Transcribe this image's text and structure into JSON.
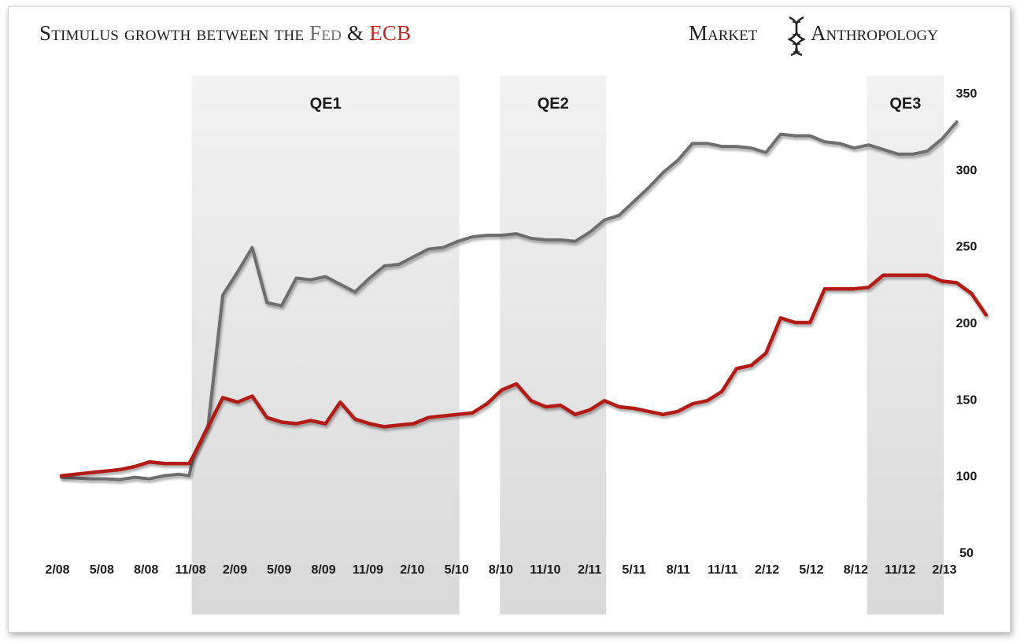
{
  "header": {
    "title_part1": "Stimulus growth between the ",
    "title_fed": "Fed",
    "title_amp": " & ",
    "title_ecb": "ECB",
    "brand_word1": "Market",
    "brand_word2": "Anthropology",
    "brand_icon": "dna-helix-icon"
  },
  "colors": {
    "fed": "#6e6e6e",
    "ecb": "#b31b17",
    "qe_band": "#e4e4e4"
  },
  "chart_data": {
    "type": "line",
    "title": "Stimulus growth between the Fed & ECB",
    "xlabel": "",
    "ylabel": "",
    "ylim": [
      50,
      350
    ],
    "yticks": [
      50,
      100,
      150,
      200,
      250,
      300,
      350
    ],
    "x_tick_labels": [
      "2/08",
      "5/08",
      "8/08",
      "11/08",
      "2/09",
      "5/09",
      "8/09",
      "11/09",
      "2/10",
      "5/10",
      "8/10",
      "11/10",
      "2/11",
      "5/11",
      "8/11",
      "11/11",
      "2/12",
      "5/12",
      "8/12",
      "11/12",
      "2/13"
    ],
    "x_axis_note": "monthly observations, index 0 = Feb 2008, index 60 = Feb 2013",
    "qe_periods": [
      {
        "label": "QE1",
        "start": 9,
        "end": 27
      },
      {
        "label": "QE2",
        "start": 30,
        "end": 37
      },
      {
        "label": "QE3",
        "start": 55,
        "end": 60
      }
    ],
    "series": [
      {
        "name": "Fed",
        "values": [
          [
            0,
            99
          ],
          [
            1,
            98.5
          ],
          [
            2,
            98
          ],
          [
            3,
            98
          ],
          [
            4,
            97.5
          ],
          [
            5,
            99
          ],
          [
            6,
            98
          ],
          [
            7,
            100
          ],
          [
            8,
            101
          ],
          [
            8.7,
            100
          ],
          [
            9,
            113
          ],
          [
            10,
            133
          ],
          [
            11,
            218
          ],
          [
            12,
            233
          ],
          [
            13,
            249
          ],
          [
            14,
            213
          ],
          [
            15,
            211
          ],
          [
            16,
            229
          ],
          [
            17,
            228
          ],
          [
            18,
            230
          ],
          [
            19,
            225
          ],
          [
            20,
            220
          ],
          [
            21,
            229
          ],
          [
            22,
            237
          ],
          [
            23,
            238
          ],
          [
            24,
            243
          ],
          [
            25,
            248
          ],
          [
            26,
            249
          ],
          [
            27,
            253
          ],
          [
            28,
            256
          ],
          [
            29,
            257
          ],
          [
            30,
            257
          ],
          [
            31,
            258
          ],
          [
            32,
            255
          ],
          [
            33,
            254
          ],
          [
            34,
            254
          ],
          [
            35,
            253
          ],
          [
            36,
            259
          ],
          [
            37,
            267
          ],
          [
            38,
            270
          ],
          [
            39,
            279
          ],
          [
            40,
            288
          ],
          [
            41,
            298
          ],
          [
            42,
            306
          ],
          [
            43,
            317
          ],
          [
            44,
            317
          ],
          [
            45,
            315
          ],
          [
            46,
            315
          ],
          [
            47,
            314
          ],
          [
            48,
            311
          ],
          [
            49,
            323
          ],
          [
            50,
            322
          ],
          [
            51,
            322
          ],
          [
            52,
            318
          ],
          [
            53,
            317
          ],
          [
            54,
            314
          ],
          [
            55,
            316
          ],
          [
            56,
            313
          ],
          [
            57,
            310
          ],
          [
            58,
            310
          ],
          [
            59,
            312
          ],
          [
            60,
            320
          ],
          [
            61,
            331
          ]
        ]
      },
      {
        "name": "ECB",
        "values": [
          [
            0,
            100
          ],
          [
            1,
            101
          ],
          [
            2,
            102
          ],
          [
            3,
            103
          ],
          [
            4,
            104
          ],
          [
            5,
            106
          ],
          [
            6,
            109
          ],
          [
            7,
            108
          ],
          [
            8,
            108
          ],
          [
            8.7,
            108
          ],
          [
            9,
            113
          ],
          [
            10,
            132
          ],
          [
            11,
            151
          ],
          [
            12,
            148
          ],
          [
            13,
            152
          ],
          [
            14,
            138
          ],
          [
            15,
            135
          ],
          [
            16,
            134
          ],
          [
            17,
            136
          ],
          [
            18,
            134
          ],
          [
            19,
            148
          ],
          [
            20,
            137
          ],
          [
            21,
            134
          ],
          [
            22,
            132
          ],
          [
            23,
            133
          ],
          [
            24,
            134
          ],
          [
            25,
            138
          ],
          [
            26,
            139
          ],
          [
            27,
            140
          ],
          [
            28,
            141
          ],
          [
            29,
            147
          ],
          [
            30,
            156
          ],
          [
            31,
            160
          ],
          [
            32,
            149
          ],
          [
            33,
            145
          ],
          [
            34,
            146
          ],
          [
            35,
            140
          ],
          [
            36,
            143
          ],
          [
            37,
            149
          ],
          [
            38,
            145
          ],
          [
            39,
            144
          ],
          [
            40,
            142
          ],
          [
            41,
            140
          ],
          [
            42,
            142
          ],
          [
            43,
            147
          ],
          [
            44,
            149
          ],
          [
            45,
            155
          ],
          [
            46,
            170
          ],
          [
            47,
            172
          ],
          [
            48,
            180
          ],
          [
            49,
            203
          ],
          [
            50,
            200
          ],
          [
            51,
            200
          ],
          [
            52,
            222
          ],
          [
            53,
            222
          ],
          [
            54,
            222
          ],
          [
            55,
            223
          ],
          [
            56,
            231
          ],
          [
            57,
            231
          ],
          [
            58,
            231
          ],
          [
            59,
            231
          ],
          [
            60,
            227
          ],
          [
            61,
            226
          ],
          [
            62,
            219
          ],
          [
            63,
            205
          ]
        ]
      }
    ]
  }
}
